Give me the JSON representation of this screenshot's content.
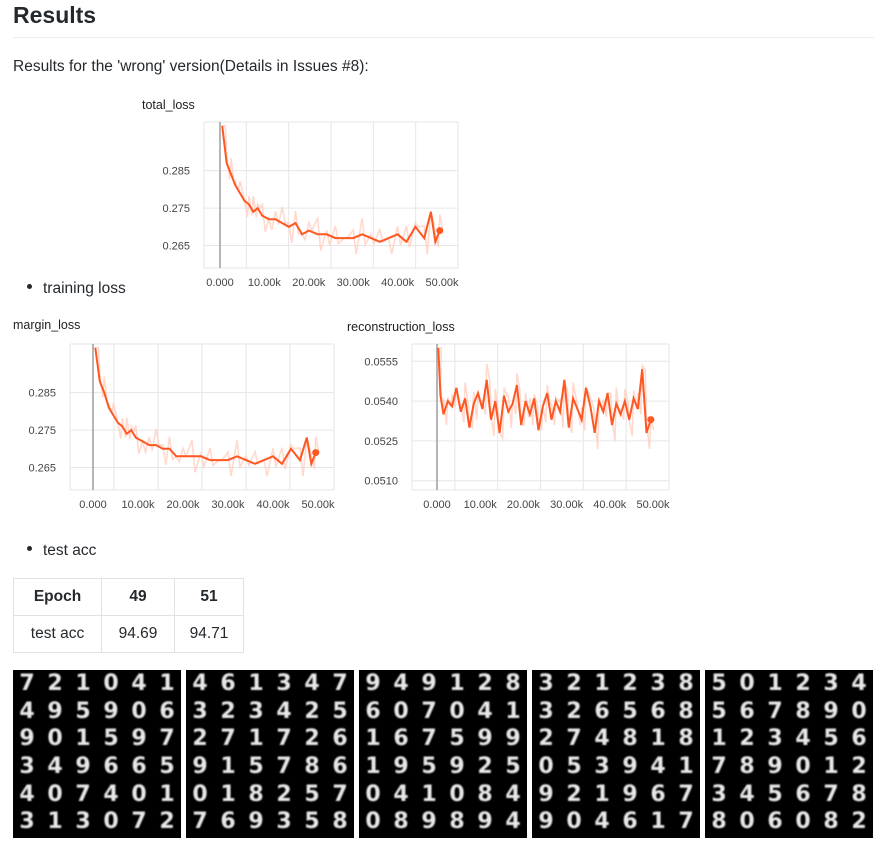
{
  "heading": "Results",
  "intro": "Results for the 'wrong' version(Details in Issues #8):",
  "bullets": {
    "training": "training loss",
    "test": "test acc"
  },
  "chart_data": [
    {
      "type": "line",
      "title": "total_loss",
      "xlim": [
        0,
        50000
      ],
      "ylim": [
        0.259,
        0.298
      ],
      "x_ticks": [
        "0.000",
        "10.00k",
        "20.00k",
        "30.00k",
        "40.00k",
        "50.00k"
      ],
      "y_ticks": [
        "0.265",
        "0.275",
        "0.285"
      ],
      "series": [
        {
          "color": "#ff5722",
          "x": [
            500,
            1500,
            2500,
            3500,
            4500,
            5500,
            6500,
            7500,
            8500,
            9500,
            11000,
            12500,
            14000,
            15500,
            17000,
            18500,
            20000,
            22000,
            24000,
            26000,
            28000,
            30000,
            32000,
            34000,
            36000,
            38000,
            40000,
            42000,
            44000,
            46000,
            47500,
            48500,
            49500
          ],
          "values": [
            0.297,
            0.287,
            0.284,
            0.281,
            0.279,
            0.277,
            0.276,
            0.274,
            0.275,
            0.273,
            0.272,
            0.272,
            0.271,
            0.27,
            0.271,
            0.268,
            0.269,
            0.268,
            0.268,
            0.267,
            0.267,
            0.267,
            0.268,
            0.267,
            0.266,
            0.267,
            0.268,
            0.266,
            0.27,
            0.267,
            0.274,
            0.266,
            0.269
          ]
        }
      ]
    },
    {
      "type": "line",
      "title": "margin_loss",
      "xlim": [
        0,
        50000
      ],
      "ylim": [
        0.259,
        0.298
      ],
      "x_ticks": [
        "0.000",
        "10.00k",
        "20.00k",
        "30.00k",
        "40.00k",
        "50.00k"
      ],
      "y_ticks": [
        "0.265",
        "0.275",
        "0.285"
      ],
      "series": [
        {
          "color": "#ff5722",
          "x": [
            500,
            1500,
            2500,
            3500,
            4500,
            5500,
            6500,
            7500,
            8500,
            9500,
            11000,
            12500,
            14000,
            15500,
            17000,
            18500,
            20000,
            22000,
            24000,
            26000,
            28000,
            30000,
            32000,
            34000,
            36000,
            38000,
            40000,
            42000,
            44000,
            46000,
            47500,
            48500,
            49500
          ],
          "values": [
            0.297,
            0.288,
            0.285,
            0.281,
            0.279,
            0.277,
            0.276,
            0.274,
            0.275,
            0.273,
            0.272,
            0.271,
            0.271,
            0.27,
            0.27,
            0.268,
            0.268,
            0.268,
            0.268,
            0.267,
            0.267,
            0.267,
            0.268,
            0.267,
            0.266,
            0.267,
            0.268,
            0.266,
            0.27,
            0.267,
            0.273,
            0.266,
            0.269
          ]
        }
      ]
    },
    {
      "type": "line",
      "title": "reconstruction_loss",
      "xlim": [
        0,
        50000
      ],
      "ylim": [
        0.05065,
        0.05615
      ],
      "x_ticks": [
        "0.000",
        "10.00k",
        "20.00k",
        "30.00k",
        "40.00k",
        "50.00k"
      ],
      "y_ticks": [
        "0.0510",
        "0.0525",
        "0.0540",
        "0.0555"
      ],
      "series": [
        {
          "color": "#ff5722",
          "x": [
            300,
            800,
            1500,
            2500,
            3500,
            4500,
            5500,
            6500,
            7500,
            8500,
            9500,
            10500,
            11500,
            12500,
            13500,
            14500,
            15500,
            16500,
            17500,
            18500,
            19500,
            20500,
            21500,
            22500,
            23500,
            24500,
            25500,
            26500,
            27500,
            28500,
            29500,
            30500,
            31500,
            32500,
            33500,
            34500,
            35500,
            36500,
            37500,
            38500,
            39500,
            40500,
            41500,
            42500,
            43500,
            44500,
            45500,
            46500,
            47500,
            48500,
            49500
          ],
          "values": [
            0.056,
            0.0542,
            0.0535,
            0.054,
            0.0538,
            0.0545,
            0.0536,
            0.0541,
            0.053,
            0.0539,
            0.0543,
            0.0537,
            0.0548,
            0.0533,
            0.054,
            0.0528,
            0.0542,
            0.0536,
            0.0539,
            0.0546,
            0.0531,
            0.054,
            0.0535,
            0.0541,
            0.0529,
            0.0538,
            0.0543,
            0.0533,
            0.054,
            0.0536,
            0.0548,
            0.053,
            0.0541,
            0.0537,
            0.0533,
            0.0545,
            0.0538,
            0.0528,
            0.054,
            0.0536,
            0.0543,
            0.0531,
            0.0539,
            0.0535,
            0.054,
            0.0533,
            0.0541,
            0.0537,
            0.0552,
            0.0528,
            0.0533
          ]
        }
      ]
    }
  ],
  "test_table": {
    "header": [
      "Epoch",
      "49",
      "51"
    ],
    "row": [
      "test acc",
      "94.69",
      "94.71"
    ]
  },
  "digit_grids": [
    [
      [
        "7",
        "2",
        "1",
        "0",
        "4",
        "1"
      ],
      [
        "4",
        "9",
        "5",
        "9",
        "0",
        "6"
      ],
      [
        "9",
        "0",
        "1",
        "5",
        "9",
        "7"
      ],
      [
        "3",
        "4",
        "9",
        "6",
        "6",
        "5"
      ],
      [
        "4",
        "0",
        "7",
        "4",
        "0",
        "1"
      ],
      [
        "3",
        "1",
        "3",
        "0",
        "7",
        "2"
      ]
    ],
    [
      [
        "4",
        "6",
        "1",
        "3",
        "4",
        "7"
      ],
      [
        "3",
        "2",
        "3",
        "4",
        "2",
        "5"
      ],
      [
        "2",
        "7",
        "1",
        "7",
        "2",
        "6"
      ],
      [
        "9",
        "1",
        "5",
        "7",
        "8",
        "6"
      ],
      [
        "0",
        "1",
        "8",
        "2",
        "5",
        "7"
      ],
      [
        "7",
        "6",
        "9",
        "3",
        "5",
        "8"
      ]
    ],
    [
      [
        "9",
        "4",
        "9",
        "1",
        "2",
        "8"
      ],
      [
        "6",
        "0",
        "7",
        "0",
        "4",
        "1"
      ],
      [
        "1",
        "6",
        "7",
        "5",
        "9",
        "9"
      ],
      [
        "1",
        "9",
        "5",
        "9",
        "2",
        "5"
      ],
      [
        "0",
        "4",
        "1",
        "0",
        "8",
        "4"
      ],
      [
        "0",
        "8",
        "9",
        "8",
        "9",
        "4"
      ]
    ],
    [
      [
        "3",
        "2",
        "1",
        "2",
        "3",
        "8"
      ],
      [
        "3",
        "2",
        "6",
        "5",
        "6",
        "8"
      ],
      [
        "2",
        "7",
        "4",
        "8",
        "1",
        "8"
      ],
      [
        "0",
        "5",
        "3",
        "9",
        "4",
        "1"
      ],
      [
        "9",
        "2",
        "1",
        "9",
        "6",
        "7"
      ],
      [
        "9",
        "0",
        "4",
        "6",
        "1",
        "7"
      ]
    ],
    [
      [
        "5",
        "0",
        "1",
        "2",
        "3",
        "4"
      ],
      [
        "5",
        "6",
        "7",
        "8",
        "9",
        "0"
      ],
      [
        "1",
        "2",
        "3",
        "4",
        "5",
        "6"
      ],
      [
        "7",
        "8",
        "9",
        "0",
        "1",
        "2"
      ],
      [
        "3",
        "4",
        "5",
        "6",
        "7",
        "8"
      ],
      [
        "8",
        "0",
        "6",
        "0",
        "8",
        "2"
      ]
    ]
  ]
}
